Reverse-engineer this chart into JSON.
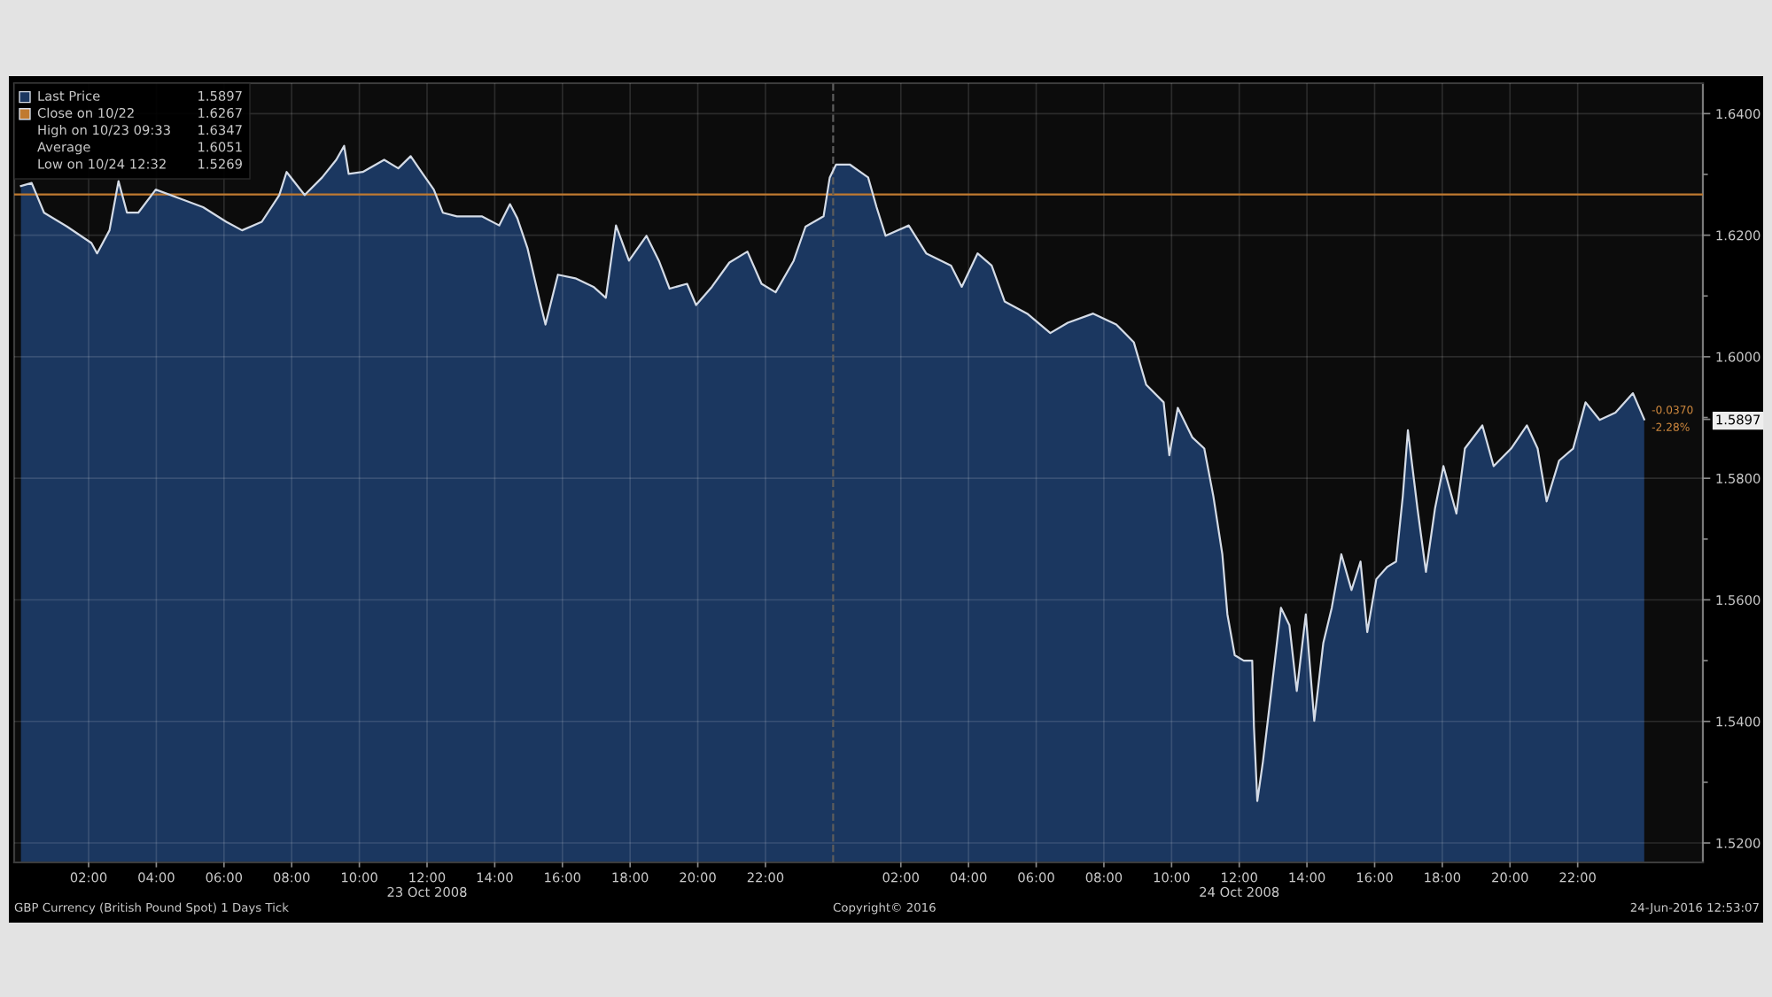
{
  "chart_data": {
    "type": "area",
    "title": "GBP Currency (British Pound Spot) 1 Days Tick",
    "x": [
      "2008-10-23T00:00",
      "2008-10-23T00:19",
      "2008-10-23T00:41",
      "2008-10-23T01:22",
      "2008-10-23T02:05",
      "2008-10-23T02:15",
      "2008-10-23T02:37",
      "2008-10-23T02:53",
      "2008-10-23T03:08",
      "2008-10-23T03:28",
      "2008-10-23T03:59",
      "2008-10-23T04:43",
      "2008-10-23T05:23",
      "2008-10-23T06:04",
      "2008-10-23T06:32",
      "2008-10-23T07:07",
      "2008-10-23T07:38",
      "2008-10-23T07:51",
      "2008-10-23T08:23",
      "2008-10-23T08:54",
      "2008-10-23T09:19",
      "2008-10-23T09:33",
      "2008-10-23T09:41",
      "2008-10-23T10:06",
      "2008-10-23T10:44",
      "2008-10-23T11:09",
      "2008-10-23T11:31",
      "2008-10-23T11:50",
      "2008-10-23T12:12",
      "2008-10-23T12:28",
      "2008-10-23T12:53",
      "2008-10-23T13:37",
      "2008-10-23T14:08",
      "2008-10-23T14:27",
      "2008-10-23T14:40",
      "2008-10-23T14:58",
      "2008-10-23T15:20",
      "2008-10-23T15:30",
      "2008-10-23T15:52",
      "2008-10-23T16:23",
      "2008-10-23T16:55",
      "2008-10-23T17:17",
      "2008-10-23T17:35",
      "2008-10-23T17:58",
      "2008-10-23T18:29",
      "2008-10-23T18:51",
      "2008-10-23T19:10",
      "2008-10-23T19:41",
      "2008-10-23T19:57",
      "2008-10-23T20:25",
      "2008-10-23T20:56",
      "2008-10-23T21:28",
      "2008-10-23T21:53",
      "2008-10-23T22:18",
      "2008-10-23T22:50",
      "2008-10-23T23:11",
      "2008-10-23T23:43",
      "2008-10-23T23:54",
      "2008-10-24T00:05",
      "2008-10-24T00:30",
      "2008-10-24T01:02",
      "2008-10-24T01:17",
      "2008-10-24T01:33",
      "2008-10-24T02:14",
      "2008-10-24T02:45",
      "2008-10-24T03:29",
      "2008-10-24T03:48",
      "2008-10-24T04:16",
      "2008-10-24T04:41",
      "2008-10-24T05:04",
      "2008-10-24T05:44",
      "2008-10-24T06:25",
      "2008-10-24T06:56",
      "2008-10-24T07:41",
      "2008-10-24T08:22",
      "2008-10-24T08:53",
      "2008-10-24T09:15",
      "2008-10-24T09:46",
      "2008-10-24T09:56",
      "2008-10-24T10:11",
      "2008-10-24T10:37",
      "2008-10-24T10:58",
      "2008-10-24T11:14",
      "2008-10-24T11:30",
      "2008-10-24T11:39",
      "2008-10-24T11:52",
      "2008-10-24T12:08",
      "2008-10-24T12:23",
      "2008-10-24T12:26",
      "2008-10-24T12:32",
      "2008-10-24T12:42",
      "2008-10-24T12:58",
      "2008-10-24T13:14",
      "2008-10-24T13:29",
      "2008-10-24T13:42",
      "2008-10-24T13:58",
      "2008-10-24T14:13",
      "2008-10-24T14:29",
      "2008-10-24T14:44",
      "2008-10-24T15:01",
      "2008-10-24T15:19",
      "2008-10-24T15:35",
      "2008-10-24T15:47",
      "2008-10-24T16:03",
      "2008-10-24T16:22",
      "2008-10-24T16:38",
      "2008-10-24T16:50",
      "2008-10-24T16:59",
      "2008-10-24T17:16",
      "2008-10-24T17:31",
      "2008-10-24T17:47",
      "2008-10-24T18:02",
      "2008-10-24T18:25",
      "2008-10-24T18:40",
      "2008-10-24T19:11",
      "2008-10-24T19:31",
      "2008-10-24T20:02",
      "2008-10-24T20:30",
      "2008-10-24T20:49",
      "2008-10-24T21:05",
      "2008-10-24T21:27",
      "2008-10-24T21:52",
      "2008-10-24T22:14",
      "2008-10-24T22:39",
      "2008-10-24T23:07",
      "2008-10-24T23:38",
      "2008-10-24T23:58"
    ],
    "series": [
      {
        "name": "Last Price",
        "color": "#1b3760",
        "values": [
          1.6281,
          1.6286,
          1.6237,
          1.6214,
          1.6187,
          1.617,
          1.6208,
          1.6289,
          1.6237,
          1.6237,
          1.6275,
          1.626,
          1.6246,
          1.6222,
          1.6208,
          1.6222,
          1.6266,
          1.6304,
          1.6266,
          1.6295,
          1.6324,
          1.6347,
          1.6301,
          1.6304,
          1.6324,
          1.631,
          1.633,
          1.6304,
          1.6275,
          1.6237,
          1.6231,
          1.6231,
          1.6216,
          1.6251,
          1.6228,
          1.6179,
          1.6091,
          1.6053,
          1.6135,
          1.6129,
          1.6115,
          1.6097,
          1.6216,
          1.6158,
          1.6199,
          1.6158,
          1.6112,
          1.612,
          1.6085,
          1.6115,
          1.6155,
          1.6173,
          1.612,
          1.6106,
          1.6158,
          1.6214,
          1.6231,
          1.6295,
          1.6316,
          1.6316,
          1.6295,
          1.6246,
          1.6199,
          1.6216,
          1.617,
          1.615,
          1.6115,
          1.617,
          1.615,
          1.6091,
          1.6071,
          1.6039,
          1.6056,
          1.6071,
          1.6053,
          1.6024,
          1.5954,
          1.5925,
          1.5838,
          1.5916,
          1.5867,
          1.5849,
          1.5771,
          1.5675,
          1.5576,
          1.5509,
          1.55,
          1.55,
          1.5392,
          1.5269,
          1.5334,
          1.5459,
          1.5587,
          1.5558,
          1.545,
          1.5576,
          1.5401,
          1.5529,
          1.5587,
          1.5675,
          1.5616,
          1.5663,
          1.5547,
          1.5634,
          1.5654,
          1.5663,
          1.5771,
          1.5879,
          1.575,
          1.5646,
          1.575,
          1.582,
          1.5742,
          1.5849,
          1.5887,
          1.582,
          1.5849,
          1.5887,
          1.5849,
          1.5762,
          1.5829,
          1.5849,
          1.5925,
          1.5896,
          1.5908,
          1.594,
          1.5897
        ]
      }
    ],
    "xlim": [
      "2008-10-22T23:48",
      "2008-10-25T01:42"
    ],
    "xticks": [
      {
        "value": "2008-10-23T02:00",
        "label": "02:00"
      },
      {
        "value": "2008-10-23T04:00",
        "label": "04:00"
      },
      {
        "value": "2008-10-23T06:00",
        "label": "06:00"
      },
      {
        "value": "2008-10-23T08:00",
        "label": "08:00"
      },
      {
        "value": "2008-10-23T10:00",
        "label": "10:00"
      },
      {
        "value": "2008-10-23T12:00",
        "label": "12:00\n23 Oct 2008"
      },
      {
        "value": "2008-10-23T14:00",
        "label": "14:00"
      },
      {
        "value": "2008-10-23T16:00",
        "label": "16:00"
      },
      {
        "value": "2008-10-23T18:00",
        "label": "18:00"
      },
      {
        "value": "2008-10-23T20:00",
        "label": "20:00"
      },
      {
        "value": "2008-10-23T22:00",
        "label": "22:00"
      },
      {
        "value": "2008-10-24T02:00",
        "label": "02:00"
      },
      {
        "value": "2008-10-24T04:00",
        "label": "04:00"
      },
      {
        "value": "2008-10-24T06:00",
        "label": "06:00"
      },
      {
        "value": "2008-10-24T08:00",
        "label": "08:00"
      },
      {
        "value": "2008-10-24T10:00",
        "label": "10:00"
      },
      {
        "value": "2008-10-24T12:00",
        "label": "12:00\n24 Oct 2008"
      },
      {
        "value": "2008-10-24T14:00",
        "label": "14:00"
      },
      {
        "value": "2008-10-24T16:00",
        "label": "16:00"
      },
      {
        "value": "2008-10-24T18:00",
        "label": "18:00"
      },
      {
        "value": "2008-10-24T20:00",
        "label": "20:00"
      },
      {
        "value": "2008-10-24T22:00",
        "label": "22:00"
      }
    ],
    "ylim": [
      1.5168,
      1.645
    ],
    "yticks": [
      {
        "value": 1.52,
        "label": "1.5200"
      },
      {
        "value": 1.53,
        "label": null
      },
      {
        "value": 1.54,
        "label": "1.5400"
      },
      {
        "value": 1.55,
        "label": null
      },
      {
        "value": 1.56,
        "label": "1.5600"
      },
      {
        "value": 1.57,
        "label": null
      },
      {
        "value": 1.58,
        "label": "1.5800"
      },
      {
        "value": 1.5897,
        "label": "1.5897"
      },
      {
        "value": 1.59,
        "label": null
      },
      {
        "value": 1.6,
        "label": "1.6000"
      },
      {
        "value": 1.61,
        "label": null
      },
      {
        "value": 1.62,
        "label": "1.6200"
      },
      {
        "value": 1.63,
        "label": null
      },
      {
        "value": 1.64,
        "label": "1.6400"
      }
    ],
    "ref_lines": [
      {
        "axis": "y",
        "value": 1.6267,
        "label": "Close on 10/22 1.6267",
        "color": "#c07a30"
      },
      {
        "axis": "x",
        "value": "2008-10-24T00:00",
        "color": "#5c5c5c",
        "line_style": "dashed"
      }
    ],
    "annotations": [
      "High on 10/23 09:33 1.6347",
      "Average 1.6051",
      "Low on 10/24 12:32 1.5269",
      "-0.0370",
      "-2.28%",
      "Copyright© 2016",
      "24-Jun-2016 12:53:07"
    ],
    "grid": true,
    "legend": "top left"
  }
}
